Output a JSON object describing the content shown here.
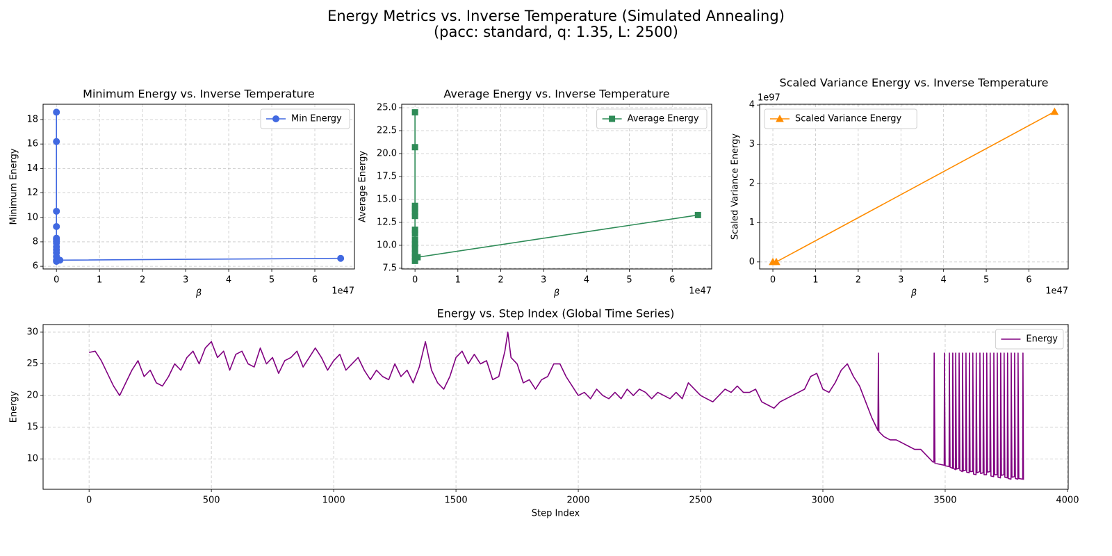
{
  "title": "Energy Metrics vs. Inverse Temperature (Simulated Annealing)",
  "subtitle": "(pacc: standard, q: 1.35, L: 2500)",
  "chart_data": [
    {
      "type": "line",
      "title": "Minimum Energy vs. Inverse Temperature",
      "xlabel": "β",
      "ylabel": "Minimum Energy",
      "x_offset": "1e47",
      "x": [
        0,
        0,
        0,
        0,
        0,
        0,
        0,
        0,
        0,
        0,
        0,
        0,
        0,
        0,
        8e+45,
        6.6e+47
      ],
      "series": [
        {
          "name": "Min Energy",
          "color": "#4169e1",
          "marker": "circle",
          "values": [
            18.6,
            16.2,
            10.5,
            9.25,
            8.3,
            8.2,
            8.05,
            7.9,
            7.6,
            7.35,
            7.1,
            6.8,
            6.5,
            6.4,
            6.5,
            6.65
          ]
        }
      ],
      "xlim": [
        -3.1e+46,
        6.92e+47
      ],
      "ylim": [
        5.78,
        19.25
      ],
      "xticks": [
        0,
        {
          "value": 1e+47,
          "label": "1"
        },
        {
          "value": 2e+47,
          "label": "2"
        },
        {
          "value": 3e+47,
          "label": "3"
        },
        {
          "value": 4e+47,
          "label": "4"
        },
        {
          "value": 5e+47,
          "label": "5"
        },
        {
          "value": 6e+47,
          "label": "6"
        }
      ],
      "yticks": [
        6,
        8,
        10,
        12,
        14,
        16,
        18
      ],
      "grid": true,
      "legend": "upper right"
    },
    {
      "type": "line",
      "title": "Average Energy vs. Inverse Temperature",
      "xlabel": "β",
      "ylabel": "Average Energy",
      "x_offset": "1e47",
      "x": [
        0,
        0,
        0,
        0,
        0,
        0,
        0,
        0,
        0,
        0,
        0,
        0,
        0,
        0,
        6e+45,
        6.6e+47
      ],
      "series": [
        {
          "name": "Average Energy",
          "color": "#2e8b57",
          "marker": "square",
          "values": [
            24.5,
            20.7,
            14.3,
            14.0,
            13.6,
            13.2,
            11.7,
            11.3,
            10.6,
            10.1,
            9.6,
            9.1,
            8.7,
            8.3,
            8.7,
            13.3
          ]
        }
      ],
      "xlim": [
        -3.1e+46,
        6.92e+47
      ],
      "ylim": [
        7.42,
        25.38
      ],
      "xticks": [
        0,
        {
          "value": 1e+47,
          "label": "1"
        },
        {
          "value": 2e+47,
          "label": "2"
        },
        {
          "value": 3e+47,
          "label": "3"
        },
        {
          "value": 4e+47,
          "label": "4"
        },
        {
          "value": 5e+47,
          "label": "5"
        },
        {
          "value": 6e+47,
          "label": "6"
        }
      ],
      "yticks": [
        7.5,
        {
          "value": 10,
          "label": "10.0"
        },
        12.5,
        {
          "value": 15,
          "label": "15.0"
        },
        17.5,
        {
          "value": 20,
          "label": "20.0"
        },
        22.5,
        {
          "value": 25,
          "label": "25.0"
        }
      ],
      "grid": true,
      "legend": "upper right"
    },
    {
      "type": "line",
      "title": "Scaled Variance Energy vs. Inverse Temperature",
      "xlabel": "β",
      "ylabel": "Scaled Variance Energy",
      "x_offset": "1e47",
      "y_offset": "1e97",
      "x": [
        0,
        8e+45,
        6.6e+47
      ],
      "series": [
        {
          "name": "Scaled Variance Energy",
          "color": "#ff8c00",
          "marker": "triangle",
          "values": [
            0,
            0,
            3.83e+97
          ]
        }
      ],
      "xlim": [
        -3.1e+46,
        6.92e+47
      ],
      "ylim": [
        -1.8e+96,
        4.02e+97
      ],
      "xticks": [
        0,
        {
          "value": 1e+47,
          "label": "1"
        },
        {
          "value": 2e+47,
          "label": "2"
        },
        {
          "value": 3e+47,
          "label": "3"
        },
        {
          "value": 4e+47,
          "label": "4"
        },
        {
          "value": 5e+47,
          "label": "5"
        },
        {
          "value": 6e+47,
          "label": "6"
        }
      ],
      "yticks": [
        0,
        {
          "value": 1e+97,
          "label": "1"
        },
        {
          "value": 2e+97,
          "label": "2"
        },
        {
          "value": 3e+97,
          "label": "3"
        },
        {
          "value": 4e+97,
          "label": "4"
        }
      ],
      "grid": true,
      "legend": "upper left"
    },
    {
      "type": "line",
      "title": "Energy vs. Step Index (Global Time Series)",
      "xlabel": "Step Index",
      "ylabel": "Energy",
      "x": [
        0,
        25,
        50,
        75,
        100,
        125,
        150,
        175,
        200,
        225,
        250,
        275,
        300,
        325,
        350,
        375,
        400,
        425,
        450,
        475,
        500,
        525,
        550,
        575,
        600,
        625,
        650,
        675,
        700,
        725,
        750,
        775,
        800,
        825,
        850,
        875,
        900,
        925,
        950,
        975,
        1000,
        1025,
        1050,
        1075,
        1100,
        1125,
        1150,
        1175,
        1200,
        1225,
        1250,
        1275,
        1300,
        1325,
        1350,
        1375,
        1400,
        1425,
        1450,
        1475,
        1500,
        1525,
        1550,
        1575,
        1600,
        1625,
        1650,
        1675,
        1700,
        1712,
        1725,
        1750,
        1775,
        1800,
        1825,
        1850,
        1875,
        1900,
        1925,
        1950,
        1975,
        2000,
        2025,
        2050,
        2075,
        2100,
        2125,
        2150,
        2175,
        2200,
        2225,
        2250,
        2275,
        2300,
        2325,
        2350,
        2375,
        2400,
        2425,
        2450,
        2475,
        2500,
        2525,
        2550,
        2575,
        2600,
        2625,
        2650,
        2675,
        2700,
        2725,
        2750,
        2775,
        2800,
        2825,
        2850,
        2875,
        2900,
        2925,
        2950,
        2975,
        3000,
        3025,
        3050,
        3075,
        3100,
        3125,
        3150,
        3175,
        3200,
        3225,
        3227,
        3229,
        3250,
        3275,
        3300,
        3325,
        3350,
        3375,
        3400,
        3425,
        3450,
        3454,
        3455,
        3458,
        3496,
        3497,
        3500,
        3516,
        3517,
        3520,
        3530,
        3531,
        3534,
        3542,
        3543,
        3546,
        3556,
        3557,
        3560,
        3570,
        3571,
        3574,
        3584,
        3585,
        3588,
        3598,
        3599,
        3602,
        3612,
        3613,
        3616,
        3626,
        3627,
        3630,
        3641,
        3642,
        3645,
        3655,
        3656,
        3659,
        3669,
        3670,
        3673,
        3683,
        3684,
        3687,
        3698,
        3699,
        3702,
        3712,
        3713,
        3716,
        3726,
        3727,
        3730,
        3740,
        3741,
        3744,
        3754,
        3755,
        3758,
        3769,
        3770,
        3773,
        3783,
        3784,
        3787,
        3797,
        3798,
        3801,
        3817,
        3818,
        3820
      ],
      "series": [
        {
          "name": "Energy",
          "color": "#800080",
          "values": [
            26.8,
            27,
            25.5,
            23.5,
            21.5,
            20,
            22,
            24,
            25.5,
            23,
            24,
            22,
            21.5,
            23,
            25,
            24,
            26,
            27,
            25,
            27.5,
            28.5,
            26,
            27,
            24,
            26.5,
            27,
            25,
            24.5,
            27.5,
            25,
            26,
            23.5,
            25.5,
            26,
            27,
            24.5,
            26,
            27.5,
            26,
            24,
            25.5,
            26.5,
            24,
            25,
            26,
            24,
            22.5,
            24,
            23,
            22.5,
            25,
            23,
            24,
            22,
            24.5,
            28.5,
            24,
            22,
            21,
            23,
            26,
            27,
            25,
            26.5,
            25,
            25.5,
            22.5,
            23,
            27,
            30,
            26,
            25,
            22,
            22.5,
            21,
            22.5,
            23,
            25,
            25,
            23,
            21.5,
            20,
            20.5,
            19.5,
            21,
            20,
            19.5,
            20.5,
            19.5,
            21,
            20,
            21,
            20.5,
            19.5,
            20.5,
            20,
            19.5,
            20.5,
            19.5,
            22,
            21,
            20,
            19.5,
            19,
            20,
            21,
            20.5,
            21.5,
            20.5,
            20.5,
            21,
            19,
            18.5,
            18,
            19,
            19.5,
            20,
            20.5,
            21,
            23,
            23.5,
            21,
            20.5,
            22,
            24,
            25,
            23,
            21.5,
            19,
            16.5,
            14.5,
            26.7,
            14.3,
            13.5,
            13,
            13,
            12.5,
            12,
            11.5,
            11.5,
            10.5,
            9.5,
            9.5,
            26.7,
            9.3,
            9,
            26.7,
            8.9,
            8.8,
            26.7,
            8.7,
            8.5,
            26.7,
            8.5,
            8.3,
            26.7,
            8.4,
            8.5,
            26.7,
            8.2,
            8,
            26.7,
            8.1,
            8.2,
            26.7,
            7.9,
            7.8,
            26.7,
            8,
            8,
            26.7,
            7.6,
            7.5,
            26.7,
            7.8,
            8,
            26.7,
            7.7,
            7.8,
            26.7,
            7.5,
            7.5,
            26.7,
            7.9,
            8,
            26.7,
            7.3,
            7.2,
            26.7,
            7.5,
            7.5,
            26.7,
            7.1,
            7,
            26.7,
            7.4,
            7.5,
            26.7,
            7.1,
            7,
            26.7,
            6.9,
            6.8,
            26.7,
            7.1,
            7.2,
            26.7,
            6.9,
            6.8,
            26.7,
            6.9,
            6.8,
            26.7,
            6.7
          ]
        }
      ],
      "xlim": [
        -188,
        4003
      ],
      "ylim": [
        5.2,
        31.2
      ],
      "xticks": [
        0,
        500,
        1000,
        1500,
        2000,
        2500,
        3000,
        3500,
        4000
      ],
      "yticks": [
        10,
        15,
        20,
        25,
        30
      ],
      "grid": true,
      "legend": "upper right"
    }
  ]
}
